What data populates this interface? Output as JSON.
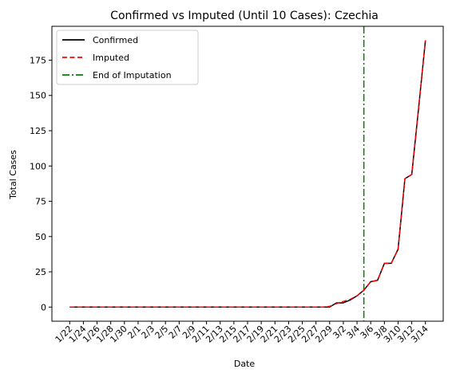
{
  "chart_data": {
    "type": "line",
    "title": "Confirmed vs Imputed (Until 10 Cases): Czechia",
    "xlabel": "Date",
    "ylabel": "Total Cases",
    "x": [
      "1/22",
      "1/23",
      "1/24",
      "1/25",
      "1/26",
      "1/27",
      "1/28",
      "1/29",
      "1/30",
      "1/31",
      "2/1",
      "2/2",
      "2/3",
      "2/4",
      "2/5",
      "2/6",
      "2/7",
      "2/8",
      "2/9",
      "2/10",
      "2/11",
      "2/12",
      "2/13",
      "2/14",
      "2/15",
      "2/16",
      "2/17",
      "2/18",
      "2/19",
      "2/20",
      "2/21",
      "2/22",
      "2/23",
      "2/24",
      "2/25",
      "2/26",
      "2/27",
      "2/28",
      "2/29",
      "3/1",
      "3/2",
      "3/3",
      "3/4",
      "3/5",
      "3/6",
      "3/7",
      "3/8",
      "3/9",
      "3/10",
      "3/11",
      "3/12",
      "3/13",
      "3/14"
    ],
    "x_tick_labels": [
      "1/22",
      "1/24",
      "1/26",
      "1/28",
      "1/30",
      "2/1",
      "2/3",
      "2/5",
      "2/7",
      "2/9",
      "2/11",
      "2/13",
      "2/15",
      "2/17",
      "2/19",
      "2/21",
      "2/23",
      "2/25",
      "2/27",
      "2/29",
      "3/2",
      "3/4",
      "3/6",
      "3/8",
      "3/10",
      "3/12",
      "3/14"
    ],
    "y_ticks": [
      0,
      25,
      50,
      75,
      100,
      125,
      150,
      175
    ],
    "ylim": [
      -10,
      199
    ],
    "series": [
      {
        "name": "Confirmed",
        "color": "#000000",
        "style": "solid",
        "values": [
          0,
          0,
          0,
          0,
          0,
          0,
          0,
          0,
          0,
          0,
          0,
          0,
          0,
          0,
          0,
          0,
          0,
          0,
          0,
          0,
          0,
          0,
          0,
          0,
          0,
          0,
          0,
          0,
          0,
          0,
          0,
          0,
          0,
          0,
          0,
          0,
          0,
          0,
          0,
          3,
          3,
          5,
          8,
          12,
          18,
          19,
          31,
          31,
          41,
          91,
          94,
          141,
          189
        ]
      },
      {
        "name": "Imputed",
        "color": "#ff0000",
        "style": "dashed",
        "values": [
          0,
          0,
          0,
          0,
          0,
          0,
          0,
          0,
          0,
          0,
          0,
          0,
          0,
          0,
          0,
          0,
          0,
          0,
          0,
          0,
          0,
          0,
          0,
          0,
          0,
          0,
          0,
          0,
          0,
          0,
          0,
          0,
          0,
          0,
          0,
          0,
          0,
          0,
          0.5,
          2.5,
          4,
          5.5,
          8,
          12,
          18,
          19,
          31,
          31,
          41,
          91,
          94,
          141,
          189
        ]
      }
    ],
    "vline": {
      "name": "End of Imputation",
      "x": "3/5",
      "color": "#008000",
      "style": "dashdot"
    },
    "legend_position": "top-left",
    "grid": false
  }
}
